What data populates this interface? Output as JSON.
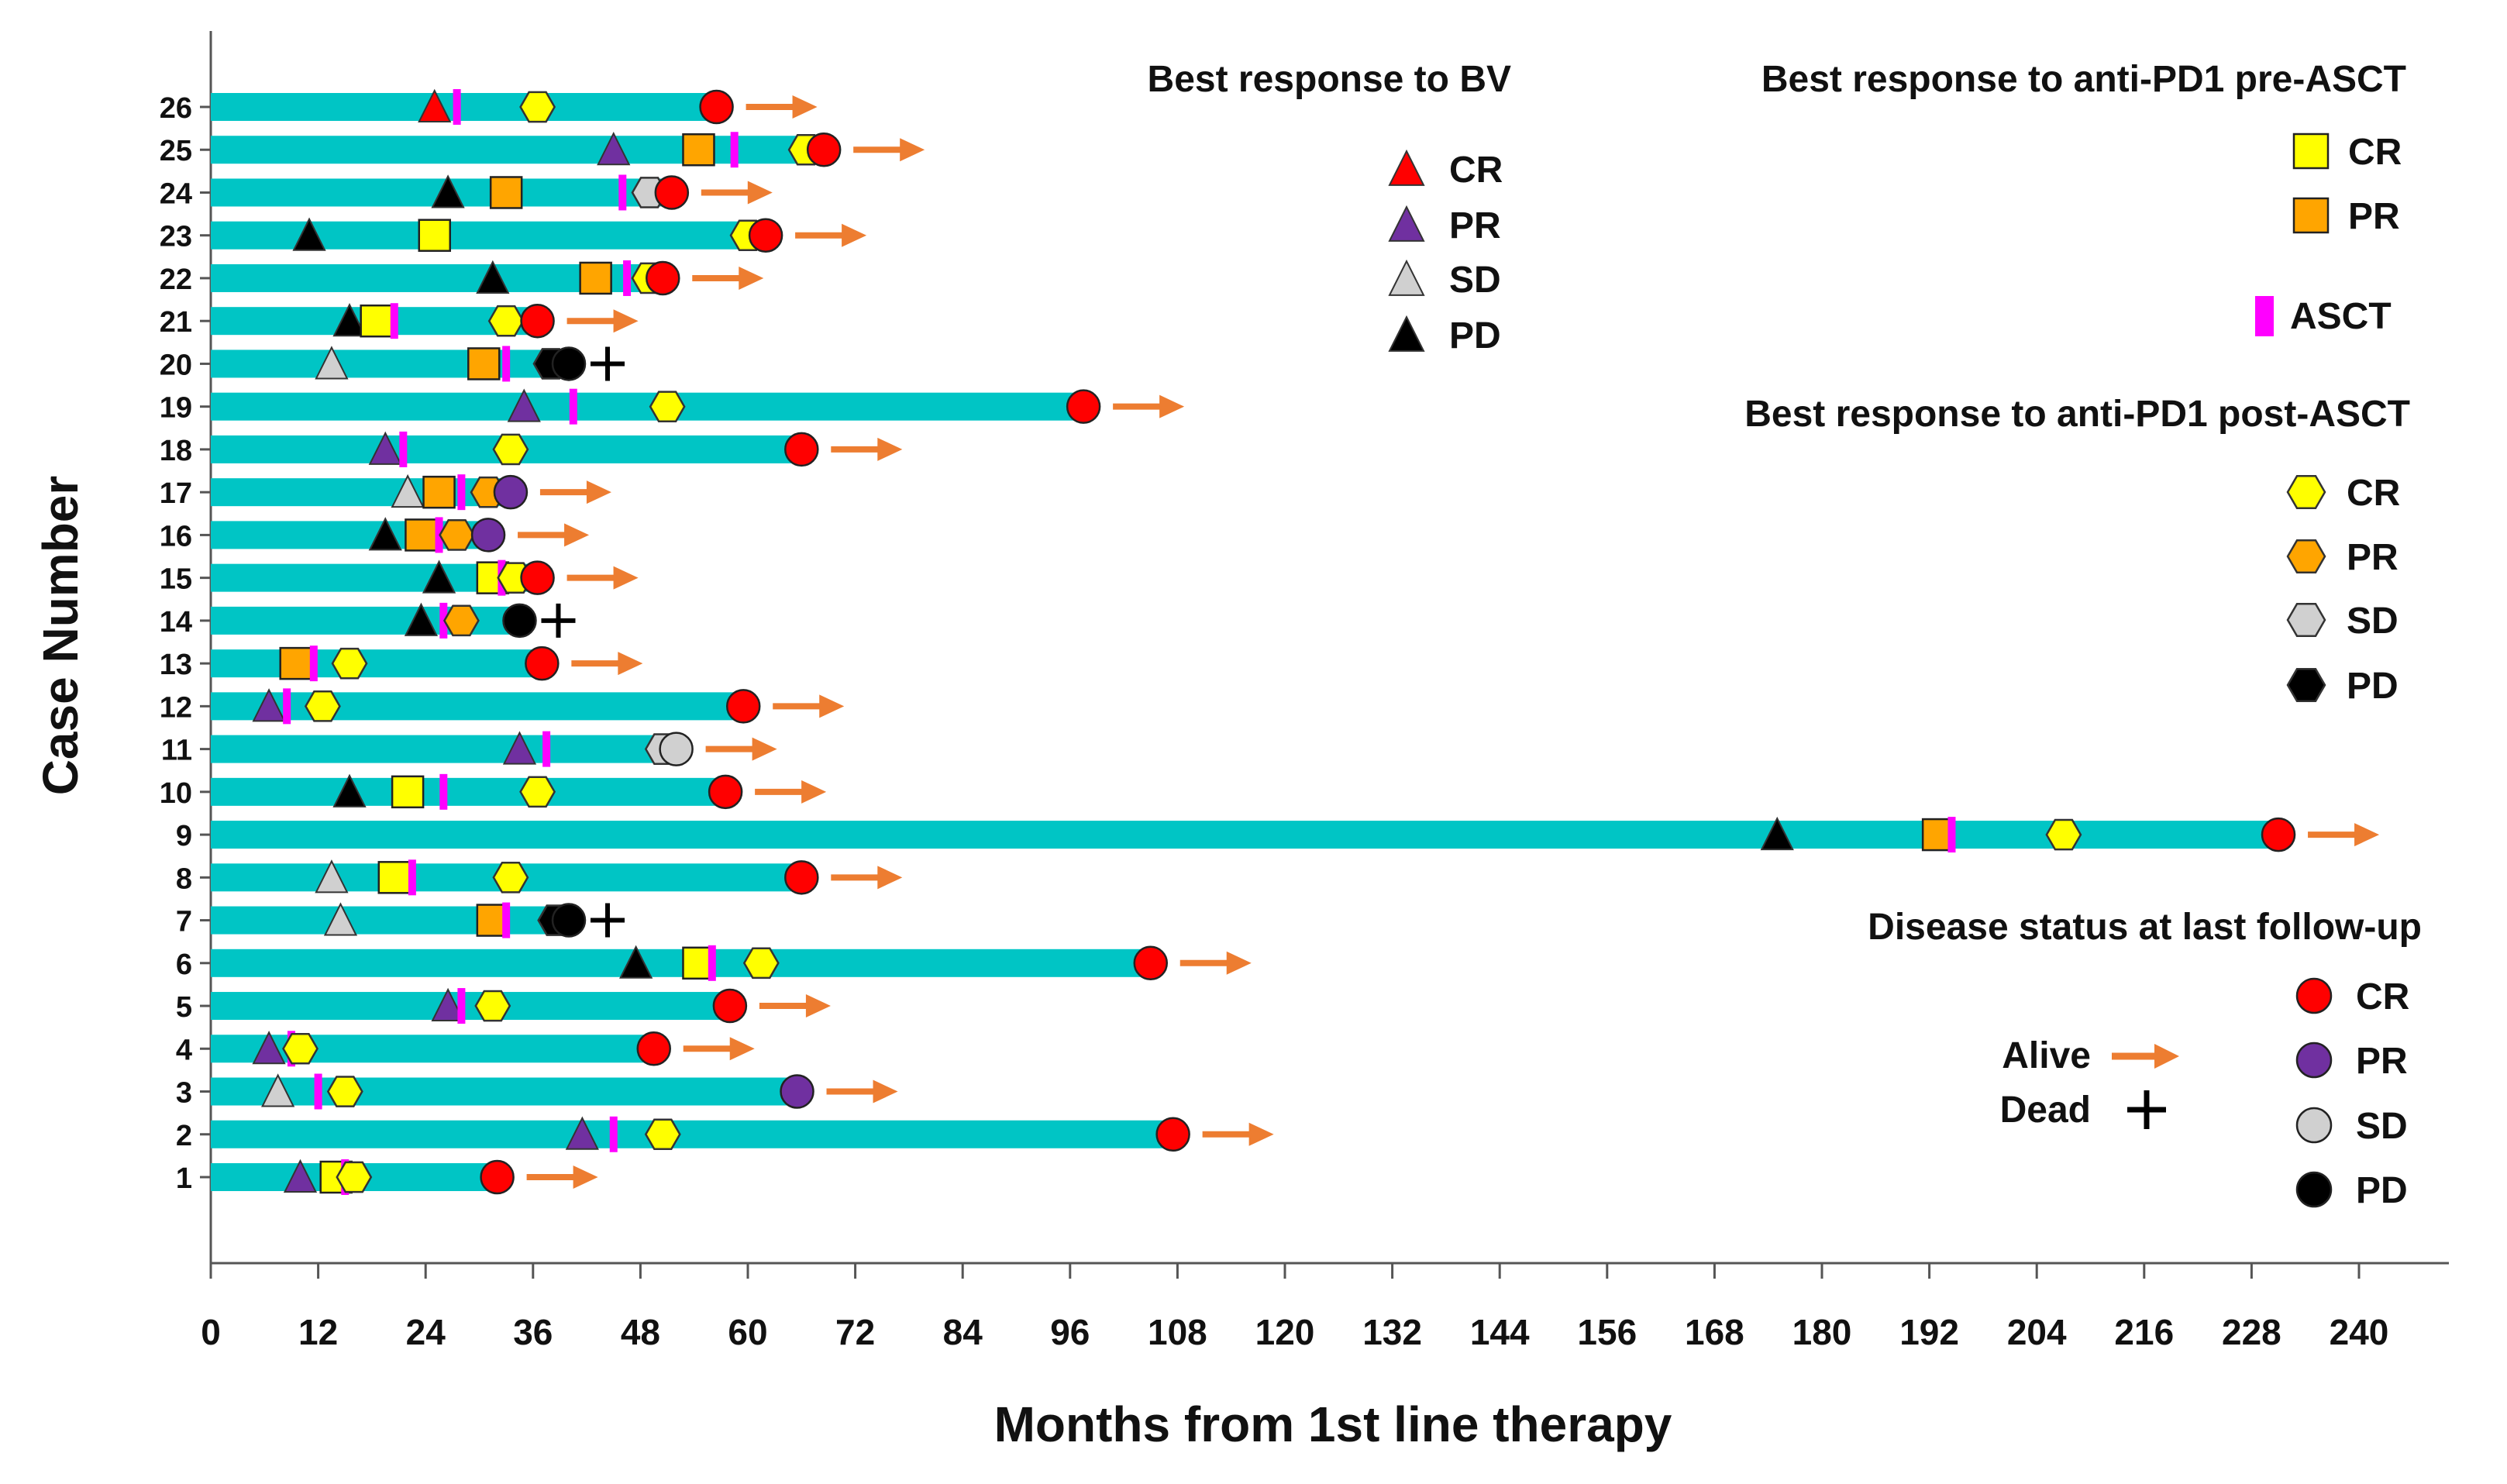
{
  "chart_data": {
    "type": "swimmer",
    "title": "",
    "xlabel": "Months from 1st line therapy",
    "ylabel": "Case Number",
    "xlim": [
      0,
      240
    ],
    "xticks": [
      0,
      12,
      24,
      36,
      48,
      60,
      72,
      84,
      96,
      108,
      120,
      132,
      144,
      156,
      168,
      180,
      192,
      204,
      216,
      228,
      240
    ],
    "colors": {
      "bar": "#00C5C5",
      "cr_red": "#FF0000",
      "pr_purple": "#7030A0",
      "sd_gray": "#D0D0D0",
      "pd_black": "#000000",
      "yellow": "#FFFF00",
      "orange": "#FFA500",
      "asct": "#FF00FF",
      "arrow": "#ED7D31"
    },
    "legends": {
      "bv": {
        "title": "Best response to BV",
        "items": [
          "CR",
          "PR",
          "SD",
          "PD"
        ]
      },
      "pre_asct": {
        "title": "Best response to anti-PD1 pre-ASCT",
        "items": [
          "CR",
          "PR"
        ]
      },
      "asct": {
        "label": "ASCT"
      },
      "post_asct": {
        "title": "Best response to anti-PD1 post-ASCT",
        "items": [
          "CR",
          "PR",
          "SD",
          "PD"
        ]
      },
      "status": {
        "title": "Disease status at last follow-up",
        "items": [
          "CR",
          "PR",
          "SD",
          "PD"
        ]
      },
      "alive_label": "Alive",
      "dead_label": "Dead"
    },
    "cases": [
      {
        "case": 1,
        "end": 32,
        "bv": [
          "PR",
          10
        ],
        "pre": [
          "CR",
          14
        ],
        "asct": 15,
        "post": [
          "CR",
          16
        ],
        "status": [
          "CR",
          32
        ],
        "outcome": "alive"
      },
      {
        "case": 2,
        "end": 108,
        "bv": [
          "PR",
          41.5
        ],
        "pre": null,
        "asct": 45,
        "post": [
          "CR",
          50.5
        ],
        "status": [
          "CR",
          107.5
        ],
        "outcome": "alive"
      },
      {
        "case": 3,
        "end": 66,
        "bv": [
          "SD",
          7.5
        ],
        "pre": null,
        "asct": 12,
        "post": [
          "CR",
          15
        ],
        "status": [
          "PR",
          65.5
        ],
        "outcome": "alive"
      },
      {
        "case": 4,
        "end": 50,
        "bv": [
          "PR",
          6.5
        ],
        "pre": null,
        "asct": 9,
        "post": [
          "CR",
          10
        ],
        "status": [
          "CR",
          49.5
        ],
        "outcome": "alive"
      },
      {
        "case": 5,
        "end": 58,
        "bv": [
          "PR",
          26.5
        ],
        "pre": null,
        "asct": 28,
        "post": [
          "CR",
          31.5
        ],
        "status": [
          "CR",
          58
        ],
        "outcome": "alive"
      },
      {
        "case": 6,
        "end": 105,
        "bv": [
          "PD",
          47.5
        ],
        "pre": [
          "CR",
          54.5
        ],
        "asct": 56,
        "post": [
          "CR",
          61.5
        ],
        "status": [
          "CR",
          105
        ],
        "outcome": "alive"
      },
      {
        "case": 7,
        "end": 40,
        "bv": [
          "SD",
          14.5
        ],
        "pre": [
          "PR",
          31.5
        ],
        "asct": 33,
        "post": [
          "PD",
          38.5
        ],
        "status": [
          "PD",
          40
        ],
        "outcome": "dead"
      },
      {
        "case": 8,
        "end": 66,
        "bv": [
          "SD",
          13.5
        ],
        "pre": [
          "CR",
          20.5
        ],
        "asct": 22.5,
        "post": [
          "CR",
          33.5
        ],
        "status": [
          "CR",
          66
        ],
        "outcome": "alive"
      },
      {
        "case": 9,
        "end": 231,
        "bv": [
          "PD",
          175
        ],
        "pre": [
          "PR",
          193
        ],
        "asct": 194.5,
        "post": [
          "CR",
          207
        ],
        "status": [
          "CR",
          231
        ],
        "outcome": "alive"
      },
      {
        "case": 10,
        "end": 58,
        "bv": [
          "PD",
          15.5
        ],
        "pre": [
          "CR",
          22
        ],
        "asct": 26,
        "post": [
          "CR",
          36.5
        ],
        "status": [
          "CR",
          57.5
        ],
        "outcome": "alive"
      },
      {
        "case": 11,
        "end": 53,
        "bv": [
          "PR",
          34.5
        ],
        "pre": null,
        "asct": 37.5,
        "post": [
          "SD",
          50.5
        ],
        "status": [
          "SD",
          52
        ],
        "outcome": "alive"
      },
      {
        "case": 12,
        "end": 60,
        "bv": [
          "PR",
          6.5
        ],
        "pre": null,
        "asct": 8.5,
        "post": [
          "CR",
          12.5
        ],
        "status": [
          "CR",
          59.5
        ],
        "outcome": "alive"
      },
      {
        "case": 13,
        "end": 37,
        "bv": null,
        "pre": [
          "PR",
          9.5
        ],
        "asct": 11.5,
        "post": [
          "CR",
          15.5
        ],
        "status": [
          "CR",
          37
        ],
        "outcome": "alive"
      },
      {
        "case": 14,
        "end": 35,
        "bv": [
          "PD",
          23.5
        ],
        "pre": null,
        "asct": 26,
        "post": [
          "PR",
          28
        ],
        "status": [
          "PD",
          34.5
        ],
        "outcome": "dead"
      },
      {
        "case": 15,
        "end": 37,
        "bv": [
          "PD",
          25.5
        ],
        "pre": [
          "CR",
          31.5
        ],
        "asct": 32.5,
        "post": [
          "CR",
          34
        ],
        "status": [
          "CR",
          36.5
        ],
        "outcome": "alive"
      },
      {
        "case": 16,
        "end": 31,
        "bv": [
          "PD",
          19.5
        ],
        "pre": [
          "PR",
          23.5
        ],
        "asct": 25.5,
        "post": [
          "PR",
          27.5
        ],
        "status": [
          "PR",
          31
        ],
        "outcome": "alive"
      },
      {
        "case": 17,
        "end": 34,
        "bv": [
          "SD",
          22
        ],
        "pre": [
          "PR",
          25.5
        ],
        "asct": 28,
        "post": [
          "PR",
          31
        ],
        "status": [
          "PR",
          33.5
        ],
        "outcome": "alive"
      },
      {
        "case": 18,
        "end": 66,
        "bv": [
          "PR",
          19.5
        ],
        "pre": null,
        "asct": 21.5,
        "post": [
          "CR",
          33.5
        ],
        "status": [
          "CR",
          66
        ],
        "outcome": "alive"
      },
      {
        "case": 19,
        "end": 98,
        "bv": [
          "PR",
          35
        ],
        "pre": null,
        "asct": 40.5,
        "post": [
          "CR",
          51
        ],
        "status": [
          "CR",
          97.5
        ],
        "outcome": "alive"
      },
      {
        "case": 20,
        "end": 40,
        "bv": [
          "SD",
          13.5
        ],
        "pre": [
          "PR",
          30.5
        ],
        "asct": 33,
        "post": [
          "PD",
          38
        ],
        "status": [
          "PD",
          40
        ],
        "outcome": "dead"
      },
      {
        "case": 21,
        "end": 37,
        "bv": [
          "PD",
          15.5
        ],
        "pre": [
          "CR",
          18.5
        ],
        "asct": 20.5,
        "post": [
          "CR",
          33
        ],
        "status": [
          "CR",
          36.5
        ],
        "outcome": "alive"
      },
      {
        "case": 22,
        "end": 51,
        "bv": [
          "PD",
          31.5
        ],
        "pre": [
          "PR",
          43
        ],
        "asct": 46.5,
        "post": [
          "CR",
          49
        ],
        "status": [
          "CR",
          50.5
        ],
        "outcome": "alive"
      },
      {
        "case": 23,
        "end": 62,
        "bv": [
          "PD",
          11
        ],
        "pre": [
          "CR",
          25
        ],
        "asct": null,
        "post": [
          "CR",
          60
        ],
        "status": [
          "CR",
          62
        ],
        "outcome": "alive"
      },
      {
        "case": 24,
        "end": 52,
        "bv": [
          "PD",
          26.5
        ],
        "pre": [
          "PR",
          33
        ],
        "asct": 46,
        "post": [
          "SD",
          49
        ],
        "status": [
          "CR",
          51.5
        ],
        "outcome": "alive"
      },
      {
        "case": 25,
        "end": 69,
        "bv": [
          "PR",
          45
        ],
        "pre": [
          "PR",
          54.5
        ],
        "asct": 58.5,
        "post": [
          "CR",
          66.5
        ],
        "status": [
          "CR",
          68.5
        ],
        "outcome": "alive"
      },
      {
        "case": 26,
        "end": 57,
        "bv": [
          "CR",
          25
        ],
        "pre": null,
        "asct": 27.5,
        "post": [
          "CR",
          36.5
        ],
        "status": [
          "CR",
          56.5
        ],
        "outcome": "alive"
      }
    ]
  }
}
